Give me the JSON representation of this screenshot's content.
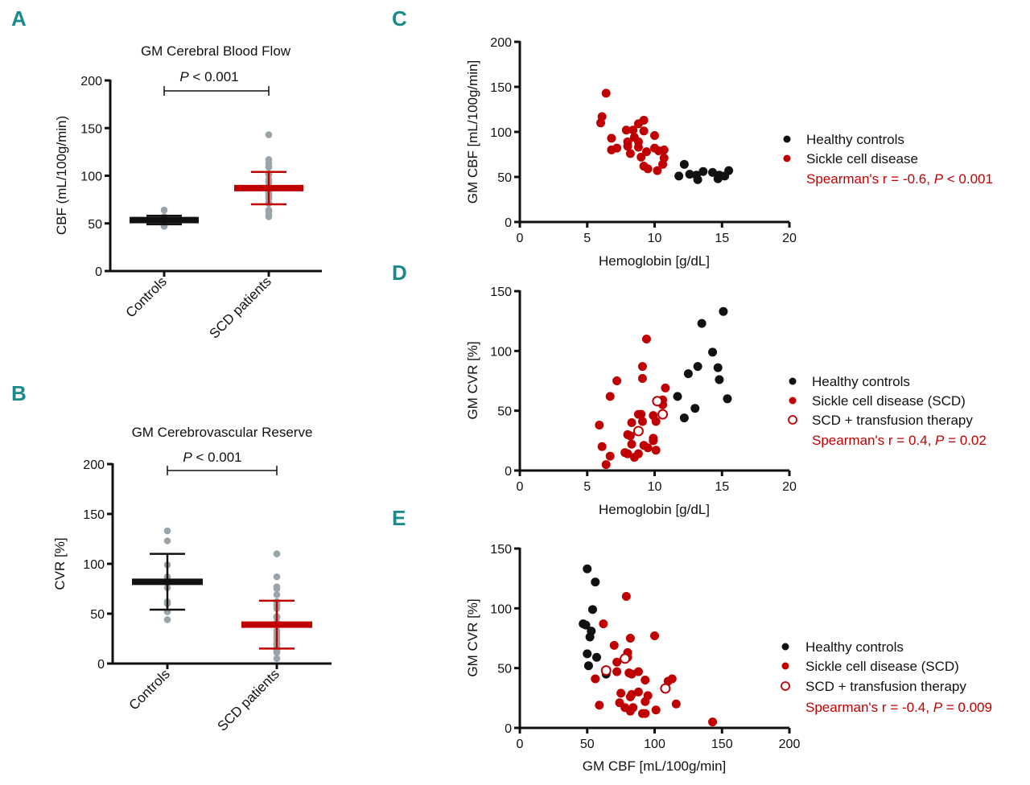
{
  "colors": {
    "red": "#c00000",
    "black": "#111111",
    "gray": "#9aa5ab",
    "letter": "#1b8a8c"
  },
  "chart_data": [
    {
      "panel": "A",
      "type": "scatter",
      "subtype": "dot-plot-mean-sd",
      "title": "GM Cerebral Blood Flow",
      "ylabel": "CBF (mL/100g/min)",
      "xlabel": "",
      "ylim": [
        0,
        200
      ],
      "yticks": [
        0,
        50,
        100,
        150,
        200
      ],
      "categories": [
        "Controls",
        "SCD patients"
      ],
      "significance": {
        "p_symbol": "P",
        "text": " < 0.001"
      },
      "series": [
        {
          "name": "Controls",
          "color": "#111111",
          "mean": 53.5,
          "sd_low": 49,
          "sd_high": 58,
          "values": [
            51,
            64,
            53,
            52,
            47,
            56,
            55,
            48,
            52,
            51,
            57
          ]
        },
        {
          "name": "SCD patients",
          "color": "#c00000",
          "mean": 87,
          "sd_low": 70,
          "sd_high": 104,
          "values": [
            143,
            117,
            110,
            93,
            80,
            82,
            102,
            102,
            109,
            113,
            101,
            94,
            89,
            84,
            89,
            83,
            76,
            96,
            78,
            72,
            62,
            59,
            57,
            82,
            79,
            80,
            71,
            64
          ]
        }
      ]
    },
    {
      "panel": "B",
      "type": "scatter",
      "subtype": "dot-plot-mean-sd",
      "title": "GM Cerebrovascular Reserve",
      "ylabel": "CVR [%]",
      "xlabel": "",
      "ylim": [
        0,
        200
      ],
      "yticks": [
        0,
        50,
        100,
        150,
        200
      ],
      "categories": [
        "Controls",
        "SCD patients"
      ],
      "significance": {
        "p_symbol": "P",
        "text": " < 0.001"
      },
      "series": [
        {
          "name": "Controls",
          "color": "#111111",
          "mean": 82,
          "sd_low": 54,
          "sd_high": 110,
          "values": [
            133,
            123,
            99,
            86,
            87,
            81,
            76,
            62,
            60,
            52,
            44
          ]
        },
        {
          "name": "SCD patients",
          "color": "#c00000",
          "mean": 39,
          "sd_low": 15,
          "sd_high": 63,
          "values": [
            110,
            87,
            77,
            75,
            62,
            69,
            59,
            55,
            47,
            47,
            46,
            41,
            41,
            40,
            38,
            30,
            29,
            22,
            27,
            25,
            21,
            19,
            20,
            17,
            15,
            14,
            11,
            14,
            12,
            5,
            58,
            47,
            33
          ]
        }
      ]
    },
    {
      "panel": "C",
      "type": "scatter",
      "xlabel": "Hemoglobin [g/dL]",
      "ylabel": "GM CBF [mL/100g/min]",
      "xlim": [
        0,
        20
      ],
      "ylim": [
        0,
        200
      ],
      "xticks": [
        0,
        5,
        10,
        15,
        20
      ],
      "yticks": [
        0,
        50,
        100,
        150,
        200
      ],
      "legend": {
        "placement": "right",
        "stat": {
          "prefix": "Spearman's r = -0.6, ",
          "p_symbol": "P",
          "suffix": " < 0.001"
        }
      },
      "series": [
        {
          "name": "Healthy controls",
          "color": "#111111",
          "marker": "filled",
          "points": [
            [
              11.8,
              51
            ],
            [
              12.2,
              64
            ],
            [
              12.6,
              53
            ],
            [
              13.1,
              52
            ],
            [
              13.2,
              47
            ],
            [
              13.6,
              56
            ],
            [
              14.3,
              55
            ],
            [
              14.7,
              48
            ],
            [
              14.8,
              52
            ],
            [
              15.2,
              51
            ],
            [
              15.5,
              57
            ]
          ]
        },
        {
          "name": "Sickle cell disease",
          "color": "#c00000",
          "marker": "filled",
          "points": [
            [
              6.4,
              143
            ],
            [
              6.1,
              117
            ],
            [
              6.0,
              110
            ],
            [
              6.8,
              93
            ],
            [
              6.8,
              80
            ],
            [
              7.2,
              82
            ],
            [
              7.9,
              102
            ],
            [
              8.4,
              102
            ],
            [
              8.8,
              109
            ],
            [
              9.2,
              113
            ],
            [
              9.2,
              101
            ],
            [
              8.5,
              94
            ],
            [
              8.0,
              89
            ],
            [
              8.0,
              84
            ],
            [
              8.8,
              89
            ],
            [
              8.8,
              83
            ],
            [
              8.2,
              76
            ],
            [
              10.0,
              96
            ],
            [
              9.4,
              78
            ],
            [
              9.0,
              72
            ],
            [
              9.2,
              62
            ],
            [
              9.5,
              59
            ],
            [
              10.2,
              57
            ],
            [
              10.0,
              82
            ],
            [
              10.3,
              79
            ],
            [
              10.7,
              80
            ],
            [
              10.7,
              71
            ],
            [
              10.6,
              64
            ]
          ]
        }
      ]
    },
    {
      "panel": "D",
      "type": "scatter",
      "xlabel": "Hemoglobin [g/dL]",
      "ylabel": "GM CVR [%]",
      "xlim": [
        0,
        20
      ],
      "ylim": [
        0,
        150
      ],
      "xticks": [
        0,
        5,
        10,
        15,
        20
      ],
      "yticks": [
        0,
        50,
        100,
        150
      ],
      "legend": {
        "placement": "right",
        "stat": {
          "prefix": "Spearman's r = 0.4, ",
          "p_symbol": "P",
          "suffix": " = 0.02"
        }
      },
      "series": [
        {
          "name": "Healthy controls",
          "color": "#111111",
          "marker": "filled",
          "points": [
            [
              15.1,
              133
            ],
            [
              13.5,
              123
            ],
            [
              14.3,
              99
            ],
            [
              14.7,
              86
            ],
            [
              13.2,
              87
            ],
            [
              12.5,
              81
            ],
            [
              14.8,
              76
            ],
            [
              11.7,
              62
            ],
            [
              15.4,
              60
            ],
            [
              13.0,
              52
            ],
            [
              12.2,
              44
            ]
          ]
        },
        {
          "name": "Sickle cell disease (SCD)",
          "color": "#c00000",
          "marker": "filled",
          "points": [
            [
              9.4,
              110
            ],
            [
              9.1,
              87
            ],
            [
              9.1,
              77
            ],
            [
              7.2,
              75
            ],
            [
              6.7,
              62
            ],
            [
              10.8,
              69
            ],
            [
              10.6,
              59
            ],
            [
              10.6,
              55
            ],
            [
              8.8,
              47
            ],
            [
              9.0,
              47
            ],
            [
              9.9,
              46
            ],
            [
              10.1,
              41
            ],
            [
              9.1,
              41
            ],
            [
              8.3,
              40
            ],
            [
              5.9,
              38
            ],
            [
              8.0,
              30
            ],
            [
              8.2,
              29
            ],
            [
              8.3,
              22
            ],
            [
              9.9,
              27
            ],
            [
              9.9,
              25
            ],
            [
              9.2,
              21
            ],
            [
              9.5,
              19
            ],
            [
              6.1,
              20
            ],
            [
              10.1,
              17
            ],
            [
              7.8,
              15
            ],
            [
              8.0,
              14
            ],
            [
              8.5,
              11
            ],
            [
              8.8,
              14
            ],
            [
              6.7,
              12
            ],
            [
              6.4,
              5
            ]
          ]
        },
        {
          "name": "SCD + transfusion therapy",
          "color": "#c00000",
          "marker": "open",
          "points": [
            [
              10.2,
              58
            ],
            [
              10.6,
              47
            ],
            [
              8.8,
              33
            ]
          ]
        }
      ]
    },
    {
      "panel": "E",
      "type": "scatter",
      "xlabel": "GM CBF [mL/100g/min]",
      "ylabel": "GM CVR [%]",
      "xlim": [
        0,
        200
      ],
      "ylim": [
        0,
        150
      ],
      "xticks": [
        0,
        50,
        100,
        150,
        200
      ],
      "yticks": [
        0,
        50,
        100,
        150
      ],
      "legend": {
        "placement": "right",
        "stat": {
          "prefix": "Spearman's r = -0.4, ",
          "p_symbol": "P",
          "suffix": " = 0.009"
        }
      },
      "series": [
        {
          "name": "Healthy controls",
          "color": "#111111",
          "marker": "filled",
          "points": [
            [
              50,
              133
            ],
            [
              56,
              122
            ],
            [
              54,
              99
            ],
            [
              47,
              87
            ],
            [
              49,
              86
            ],
            [
              53,
              81
            ],
            [
              52,
              76
            ],
            [
              50,
              62
            ],
            [
              57,
              59
            ],
            [
              51,
              52
            ],
            [
              64,
              45
            ]
          ]
        },
        {
          "name": "Sickle cell disease (SCD)",
          "color": "#c00000",
          "marker": "filled",
          "points": [
            [
              79,
              110
            ],
            [
              62,
              87
            ],
            [
              82,
              75
            ],
            [
              100,
              77
            ],
            [
              70,
              69
            ],
            [
              80,
              63
            ],
            [
              80,
              59
            ],
            [
              72,
              55
            ],
            [
              72,
              47
            ],
            [
              81,
              46
            ],
            [
              83,
              45
            ],
            [
              88,
              47
            ],
            [
              56,
              41
            ],
            [
              93,
              40
            ],
            [
              113,
              41
            ],
            [
              110,
              39
            ],
            [
              75,
              29
            ],
            [
              83,
              28
            ],
            [
              88,
              30
            ],
            [
              95,
              27
            ],
            [
              82,
              26
            ],
            [
              93,
              22
            ],
            [
              59,
              19
            ],
            [
              74,
              21
            ],
            [
              78,
              17
            ],
            [
              84,
              17
            ],
            [
              82,
              14
            ],
            [
              93,
              12
            ],
            [
              91,
              12
            ],
            [
              101,
              15
            ],
            [
              116,
              20
            ],
            [
              143,
              5
            ]
          ]
        },
        {
          "name": "SCD + transfusion therapy",
          "color": "#c00000",
          "marker": "open",
          "points": [
            [
              78,
              58
            ],
            [
              64,
              48
            ],
            [
              108,
              33
            ]
          ]
        }
      ]
    }
  ]
}
